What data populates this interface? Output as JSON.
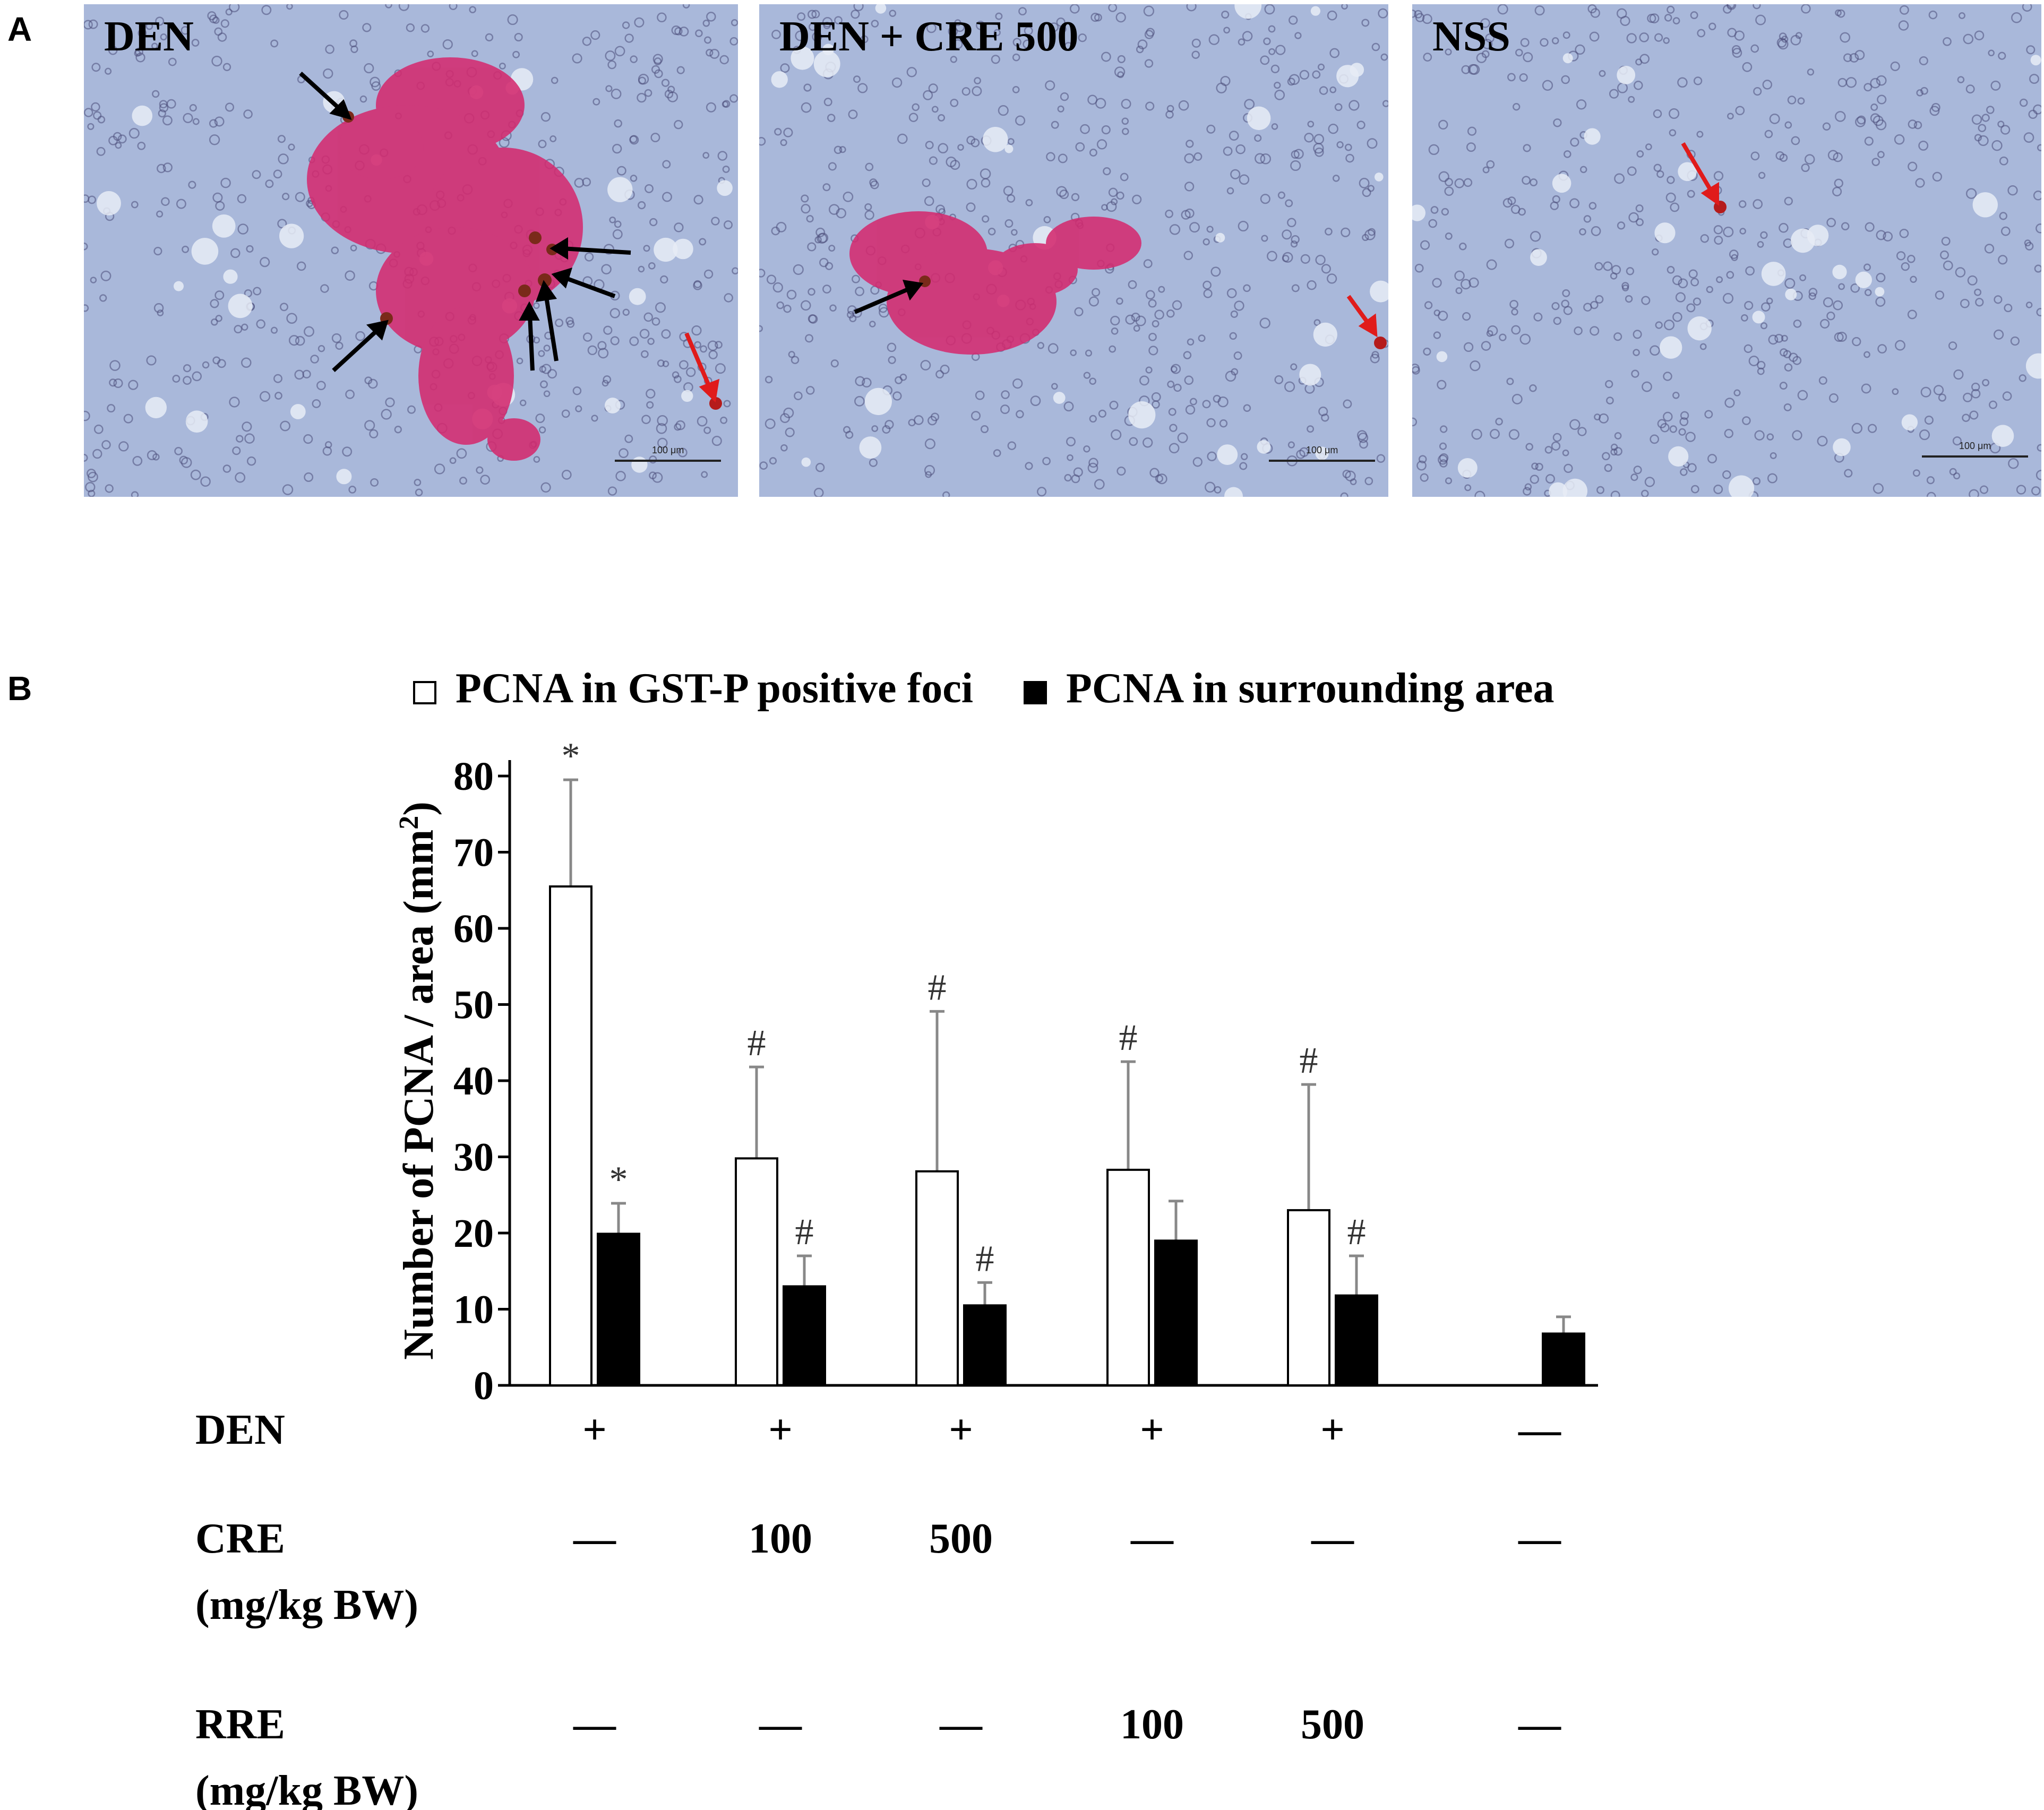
{
  "panels": {
    "a_letter": "A",
    "b_letter": "B",
    "photos": [
      {
        "label": "DEN",
        "scale_bar": "100 μm"
      },
      {
        "label": "DEN + CRE 500",
        "scale_bar": "100 μm"
      },
      {
        "label": "NSS",
        "scale_bar": "100 μm"
      }
    ]
  },
  "colors": {
    "tissue_bg": "#a9b8da",
    "gst_p_stain": "#d42a6f",
    "nucleus": "#4a4d7a",
    "pcna_nucleus": "#7a2a1a",
    "arrow_black": "#000000",
    "arrow_red": "#e01b1b",
    "bar_open": "#ffffff",
    "bar_filled": "#000000",
    "error_bar": "#888888"
  },
  "chart_data": {
    "type": "bar",
    "title": "",
    "ylabel": "Number of PCNA / area (mm²)",
    "ylabel_main": "Number of PCNA / area (mm",
    "ylabel_sup": "2",
    "ylabel_end": ")",
    "ylim": [
      0,
      80
    ],
    "yticks": [
      "0",
      "10",
      "20",
      "30",
      "40",
      "50",
      "60",
      "70",
      "80"
    ],
    "legend_position": "top-center",
    "series": [
      {
        "name": "PCNA in GST-P positive foci",
        "fill": "open",
        "values": [
          65.5,
          29.8,
          28.1,
          28.3,
          23.0,
          null
        ],
        "errors": [
          14.0,
          12.0,
          21.0,
          14.2,
          16.5,
          null
        ],
        "annotations": [
          "*",
          "#",
          "#",
          "#",
          "#",
          ""
        ]
      },
      {
        "name": "PCNA in surrounding area",
        "fill": "filled",
        "values": [
          19.9,
          13.0,
          10.5,
          19.0,
          11.8,
          6.8
        ],
        "errors": [
          4.0,
          4.0,
          3.0,
          5.2,
          5.2,
          2.2
        ],
        "annotations": [
          "*",
          "#",
          "#",
          "",
          "#",
          ""
        ]
      }
    ],
    "treatment_table": [
      {
        "label": "DEN",
        "unit": "",
        "values": [
          "+",
          "+",
          "+",
          "+",
          "+",
          "—"
        ]
      },
      {
        "label": "CRE",
        "unit": "(mg/kg BW)",
        "values": [
          "—",
          "100",
          "500",
          "—",
          "—",
          "—"
        ]
      },
      {
        "label": "RRE",
        "unit": "(mg/kg BW)",
        "values": [
          "—",
          "—",
          "—",
          "100",
          "500",
          "—"
        ]
      }
    ]
  }
}
